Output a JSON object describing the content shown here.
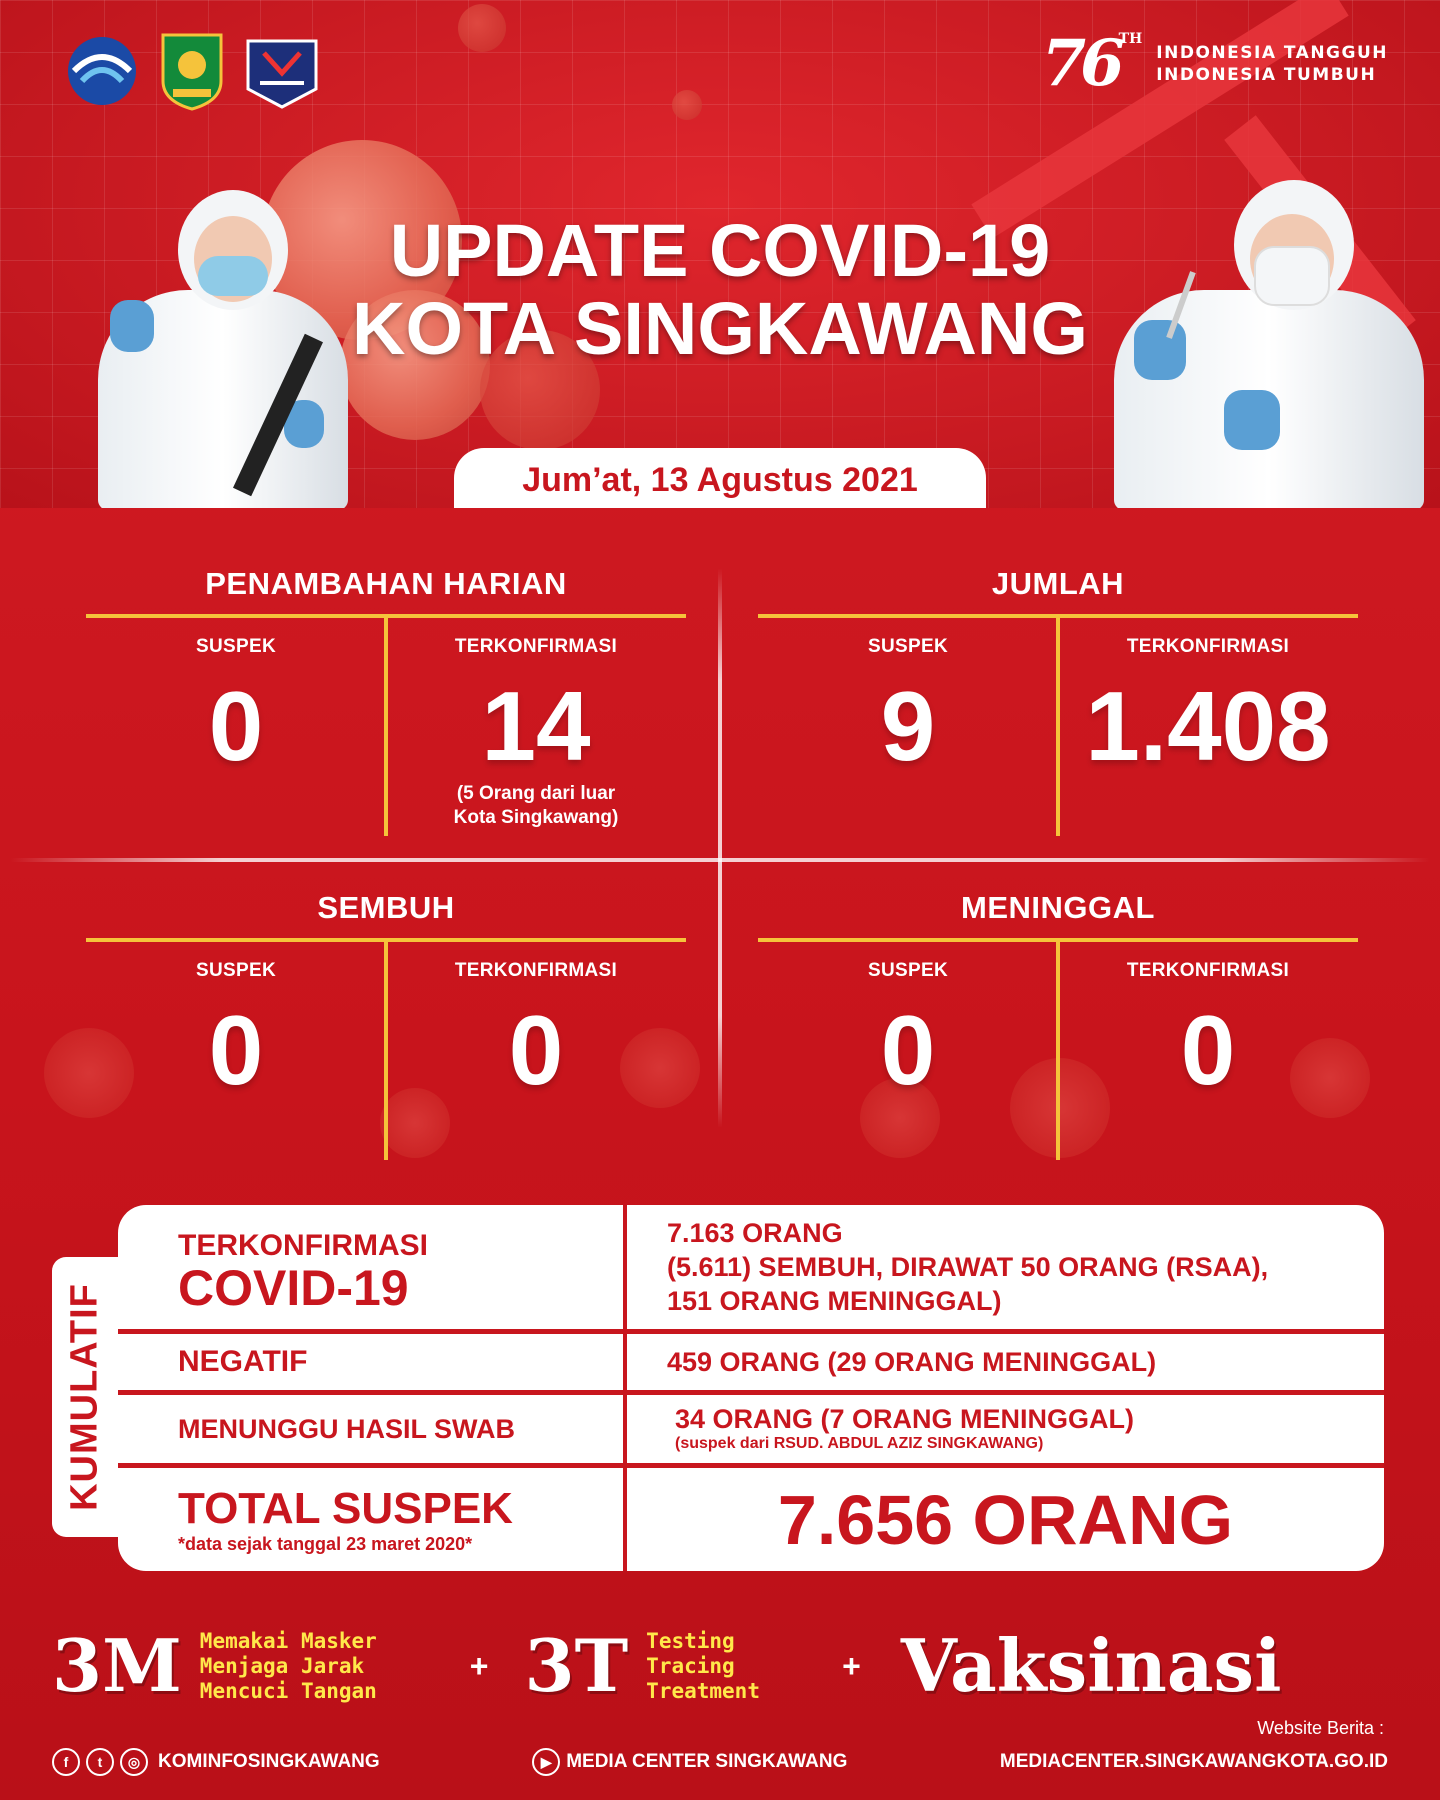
{
  "header": {
    "anniv_number": "76",
    "anniv_suffix": "TH",
    "tagline_1": "INDONESIA TANGGUH",
    "tagline_2": "INDONESIA TUMBUH",
    "title_1": "UPDATE COVID-19",
    "title_2": "KOTA SINGKAWANG",
    "date": "Jum’at, 13 Agustus 2021"
  },
  "logos": [
    "kominfo-logo",
    "pemkot-singkawang-logo",
    "satgas-covid-19-logo"
  ],
  "stats": {
    "harian": {
      "title": "PENAMBAHAN HARIAN",
      "suspek_label": "SUSPEK",
      "suspek_value": "0",
      "konfirmasi_label": "TERKONFIRMASI",
      "konfirmasi_value": "14",
      "konfirmasi_note_1": "(5 Orang dari luar",
      "konfirmasi_note_2": "Kota Singkawang)"
    },
    "jumlah": {
      "title": "JUMLAH",
      "suspek_label": "SUSPEK",
      "suspek_value": "9",
      "konfirmasi_label": "TERKONFIRMASI",
      "konfirmasi_value": "1.408"
    },
    "sembuh": {
      "title": "SEMBUH",
      "suspek_label": "SUSPEK",
      "suspek_value": "0",
      "konfirmasi_label": "TERKONFIRMASI",
      "konfirmasi_value": "0"
    },
    "meninggal": {
      "title": "MENINGGAL",
      "suspek_label": "SUSPEK",
      "suspek_value": "0",
      "konfirmasi_label": "TERKONFIRMASI",
      "konfirmasi_value": "0"
    }
  },
  "kumulatif": {
    "tab_label": "KUMULATIF",
    "konfirmasi_label_1": "TERKONFIRMASI",
    "konfirmasi_label_2": "COVID-19",
    "konfirmasi_value_1": "7.163 ORANG",
    "konfirmasi_value_2": "(5.611) SEMBUH, DIRAWAT 50 ORANG (RSAA),",
    "konfirmasi_value_3": "151 ORANG MENINGGAL)",
    "negatif_label": "NEGATIF",
    "negatif_value": "459 ORANG (29 ORANG MENINGGAL)",
    "swab_label": "MENUNGGU HASIL SWAB",
    "swab_value": "34 ORANG (7 ORANG MENINGGAL)",
    "swab_note": "(suspek dari RSUD. ABDUL AZIZ SINGKAWANG)",
    "total_label": "TOTAL SUSPEK",
    "total_note": "*data sejak tanggal 23 maret 2020*",
    "total_value": "7.656 ORANG"
  },
  "promo": {
    "m_title": "3M",
    "m_items": [
      "Memakai Masker",
      "Menjaga Jarak",
      "Mencuci Tangan"
    ],
    "plus": "+",
    "t_title": "3T",
    "t_items": [
      "Testing",
      "Tracing",
      "Treatment"
    ],
    "vaksin": "Vaksinasi"
  },
  "footer": {
    "social_handle": "KOMINFOSINGKAWANG",
    "youtube": "MEDIA CENTER SINGKAWANG",
    "website_label": "Website Berita :",
    "website": "MEDIACENTER.SINGKAWANGKOTA.GO.ID"
  },
  "colors": {
    "primary_red": "#c8161e",
    "accent_yellow": "#f5c33b",
    "slogan_yellow": "#ffe84a",
    "white": "#ffffff"
  }
}
